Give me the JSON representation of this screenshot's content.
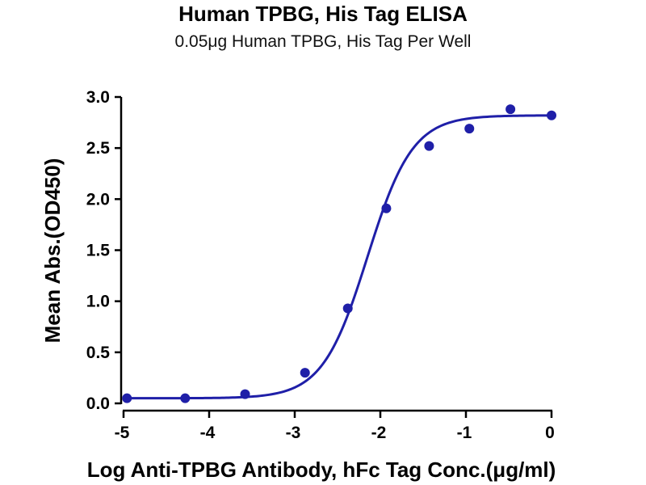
{
  "chart_data": {
    "type": "scatter",
    "title": "Human TPBG, His Tag ELISA",
    "subtitle": "0.05μg Human TPBG, His Tag Per Well",
    "xlabel": "Log Anti-TPBG Antibody, hFc Tag Conc.(μg/ml)",
    "ylabel": "Mean Abs.(OD450)",
    "xlim": [
      -5,
      0
    ],
    "ylim": [
      0,
      3.0
    ],
    "x_ticks": [
      "-5",
      "-4",
      "-3",
      "-2",
      "-1",
      "0"
    ],
    "y_ticks": [
      "0.0",
      "0.5",
      "1.0",
      "1.5",
      "2.0",
      "2.5",
      "3.0"
    ],
    "series": [
      {
        "points": [
          {
            "x": -4.96,
            "y": 0.05
          },
          {
            "x": -4.28,
            "y": 0.05
          },
          {
            "x": -3.58,
            "y": 0.09
          },
          {
            "x": -2.88,
            "y": 0.3
          },
          {
            "x": -2.38,
            "y": 0.93
          },
          {
            "x": -1.93,
            "y": 1.91
          },
          {
            "x": -1.43,
            "y": 2.52
          },
          {
            "x": -0.96,
            "y": 2.69
          },
          {
            "x": -0.48,
            "y": 2.88
          },
          {
            "x": 0.0,
            "y": 2.82
          }
        ],
        "fit": {
          "model": "4PL",
          "bottom": 0.05,
          "top": 2.82,
          "logEC50": -2.15,
          "hill": 1.65
        }
      }
    ],
    "grid": false,
    "color": "#1f1fa8"
  }
}
